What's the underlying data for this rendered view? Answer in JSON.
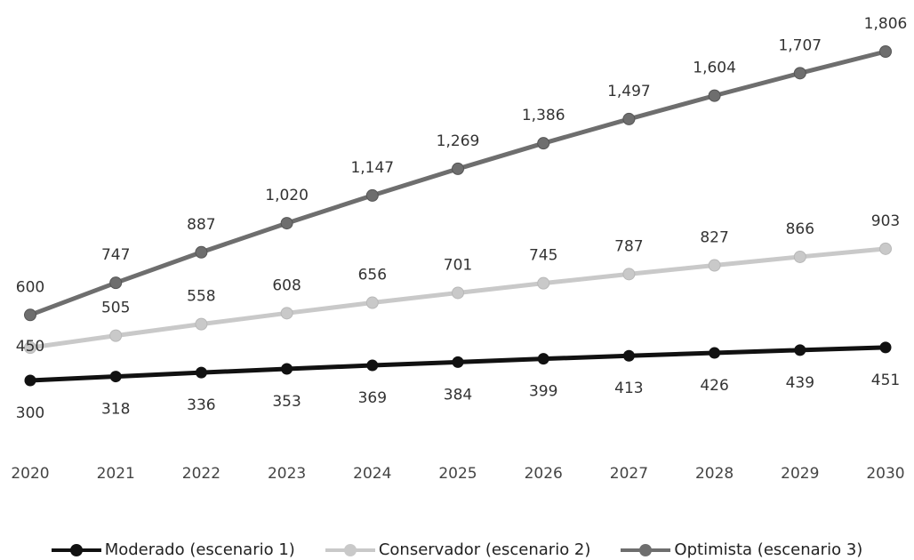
{
  "chart_data": {
    "type": "line",
    "title": "",
    "xlabel": "",
    "ylabel": "",
    "x": [
      "2020",
      "2021",
      "2022",
      "2023",
      "2024",
      "2025",
      "2026",
      "2027",
      "2028",
      "2029",
      "2030"
    ],
    "ylim": [
      200,
      1900
    ],
    "grid": false,
    "legend_position": "bottom",
    "series": [
      {
        "name": "Moderado (escenario 1)",
        "color": "#111111",
        "values": [
          300,
          318,
          336,
          353,
          369,
          384,
          399,
          413,
          426,
          439,
          451
        ],
        "labels": [
          "300",
          "318",
          "336",
          "353",
          "369",
          "384",
          "399",
          "413",
          "426",
          "439",
          "451"
        ],
        "label_position": "below"
      },
      {
        "name": "Conservador (escenario 2)",
        "color": "#c9c9c9",
        "values": [
          450,
          505,
          558,
          608,
          656,
          701,
          745,
          787,
          827,
          866,
          903
        ],
        "labels": [
          "450",
          "505",
          "558",
          "608",
          "656",
          "701",
          "745",
          "787",
          "827",
          "866",
          "903"
        ],
        "label_position": "above"
      },
      {
        "name": "Optimista (escenario 3)",
        "color": "#6e6e6e",
        "values": [
          600,
          747,
          887,
          1020,
          1147,
          1269,
          1386,
          1497,
          1604,
          1707,
          1806
        ],
        "labels": [
          "600",
          "747",
          "887",
          "1,020",
          "1,147",
          "1,269",
          "1,386",
          "1,497",
          "1,604",
          "1,707",
          "1,806"
        ],
        "label_position": "above"
      }
    ]
  }
}
